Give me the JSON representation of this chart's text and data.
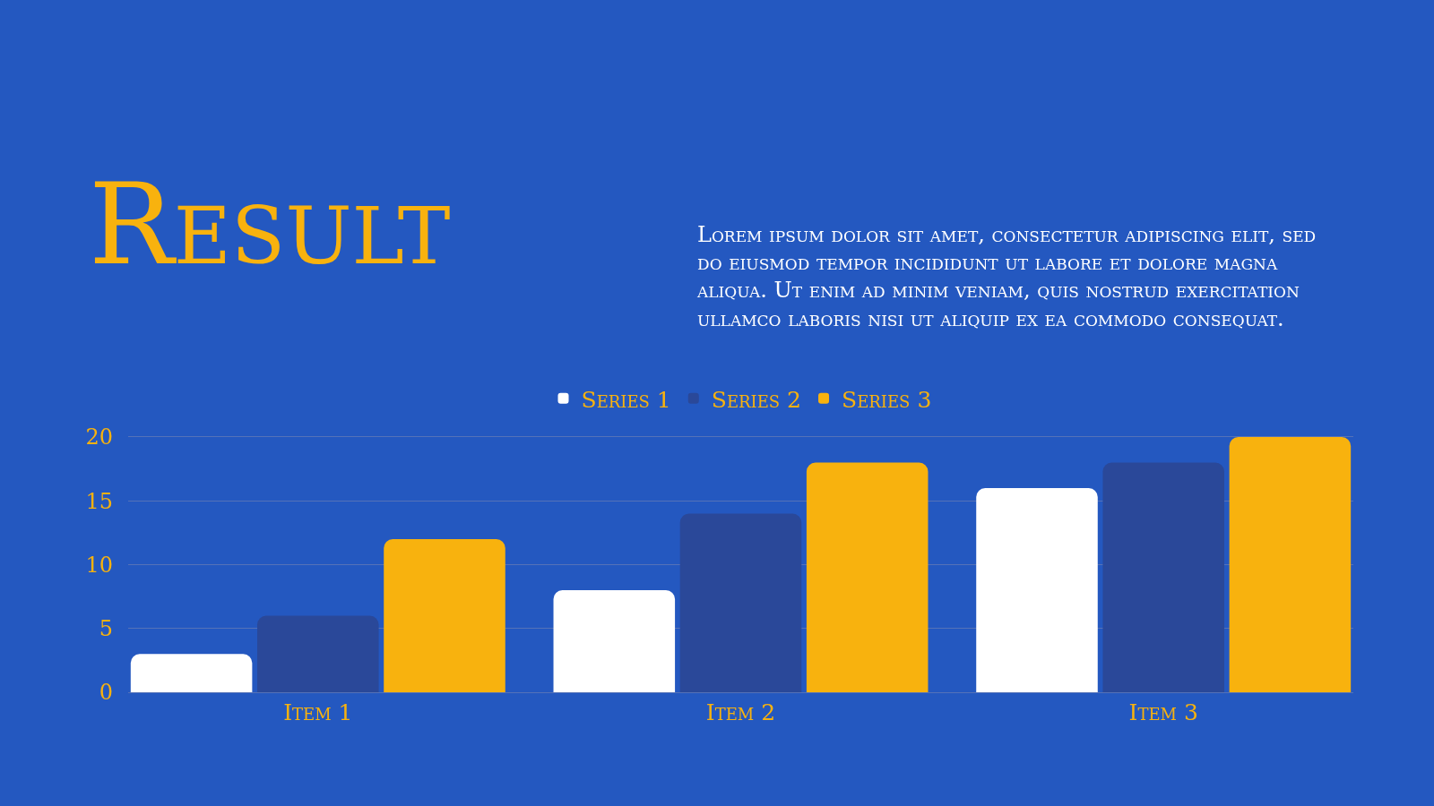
{
  "chart_data": {
    "type": "bar",
    "title": "Result",
    "subtitle": "Lorem ipsum dolor sit amet, consectetur adipiscing elit, sed do eiusmod tempor incididunt ut labore et dolore magna aliqua. Ut enim ad minim veniam, quis nostrud exercitation ullamco laboris nisi ut aliquip ex ea commodo consequat.",
    "categories": [
      "Item 1",
      "Item 2",
      "Item 3"
    ],
    "series": [
      {
        "name": "Series 1",
        "color": "#ffffff",
        "values": [
          3,
          8,
          16
        ]
      },
      {
        "name": "Series 2",
        "color": "#2a4899",
        "values": [
          6,
          14,
          18
        ]
      },
      {
        "name": "Series 3",
        "color": "#f8b20e",
        "values": [
          12,
          18,
          20
        ]
      }
    ],
    "ylim": [
      0,
      20
    ],
    "yticks": [
      0,
      5,
      10,
      15,
      20
    ],
    "grid": "y",
    "legend": "top"
  }
}
